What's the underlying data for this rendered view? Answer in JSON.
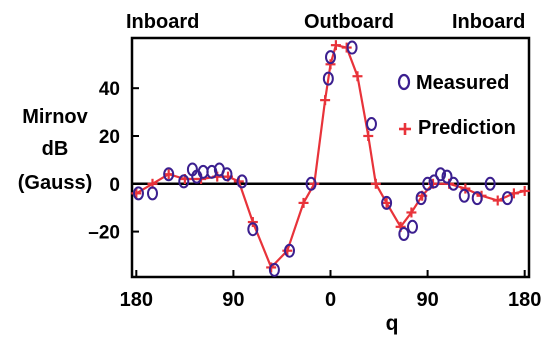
{
  "chart_data": {
    "type": "line",
    "region_labels": [
      "Inboard",
      "Outboard",
      "Inboard"
    ],
    "ylabel_lines": [
      "Mirnov",
      "dB",
      "(Gauss)"
    ],
    "xlabel": "q",
    "x_ticks": [
      {
        "value": -180,
        "label": "180"
      },
      {
        "value": -90,
        "label": "90"
      },
      {
        "value": 0,
        "label": "0"
      },
      {
        "value": 90,
        "label": "90"
      },
      {
        "value": 180,
        "label": "180"
      }
    ],
    "y_ticks": [
      {
        "value": -20,
        "label": "–20"
      },
      {
        "value": 0,
        "label": "0"
      },
      {
        "value": 20,
        "label": "20"
      },
      {
        "value": 40,
        "label": "40"
      }
    ],
    "xlim": [
      -184,
      184
    ],
    "ylim": [
      -39,
      61
    ],
    "zero_line": true,
    "legend_position": "top-right",
    "series": [
      {
        "name": "Measured",
        "marker": "circle",
        "color": "#3b1f8f",
        "points": [
          [
            -178,
            -4
          ],
          [
            -165,
            -4
          ],
          [
            -150,
            4
          ],
          [
            -136,
            1
          ],
          [
            -128,
            6
          ],
          [
            -124,
            3
          ],
          [
            -118,
            5
          ],
          [
            -110,
            5
          ],
          [
            -103,
            6
          ],
          [
            -96,
            4
          ],
          [
            -82,
            1
          ],
          [
            -72,
            -19
          ],
          [
            -52,
            -36
          ],
          [
            -38,
            -28
          ],
          [
            -18,
            0
          ],
          [
            -2,
            44
          ],
          [
            0,
            53
          ],
          [
            20,
            57
          ],
          [
            38,
            25
          ],
          [
            52,
            -8
          ],
          [
            68,
            -21
          ],
          [
            76,
            -18
          ],
          [
            84,
            -6
          ],
          [
            90,
            0
          ],
          [
            96,
            1
          ],
          [
            102,
            4
          ],
          [
            108,
            3
          ],
          [
            114,
            0
          ],
          [
            124,
            -5
          ],
          [
            136,
            -6
          ],
          [
            148,
            0
          ],
          [
            164,
            -6
          ]
        ]
      },
      {
        "name": "Prediction",
        "marker": "plus",
        "color": "#e8333a",
        "points": [
          [
            -180,
            -4
          ],
          [
            -165,
            0
          ],
          [
            -150,
            4
          ],
          [
            -135,
            2
          ],
          [
            -120,
            2
          ],
          [
            -105,
            3
          ],
          [
            -95,
            3
          ],
          [
            -85,
            1
          ],
          [
            -72,
            -16
          ],
          [
            -55,
            -35
          ],
          [
            -40,
            -28
          ],
          [
            -25,
            -8
          ],
          [
            -15,
            0
          ],
          [
            -5,
            35
          ],
          [
            0,
            50
          ],
          [
            5,
            58
          ],
          [
            15,
            57
          ],
          [
            25,
            45
          ],
          [
            35,
            20
          ],
          [
            42,
            0
          ],
          [
            52,
            -8
          ],
          [
            65,
            -18
          ],
          [
            75,
            -12
          ],
          [
            85,
            -5
          ],
          [
            95,
            0
          ],
          [
            110,
            0
          ],
          [
            125,
            -2
          ],
          [
            140,
            -5
          ],
          [
            155,
            -7
          ],
          [
            170,
            -4
          ],
          [
            180,
            -3
          ]
        ]
      }
    ]
  }
}
